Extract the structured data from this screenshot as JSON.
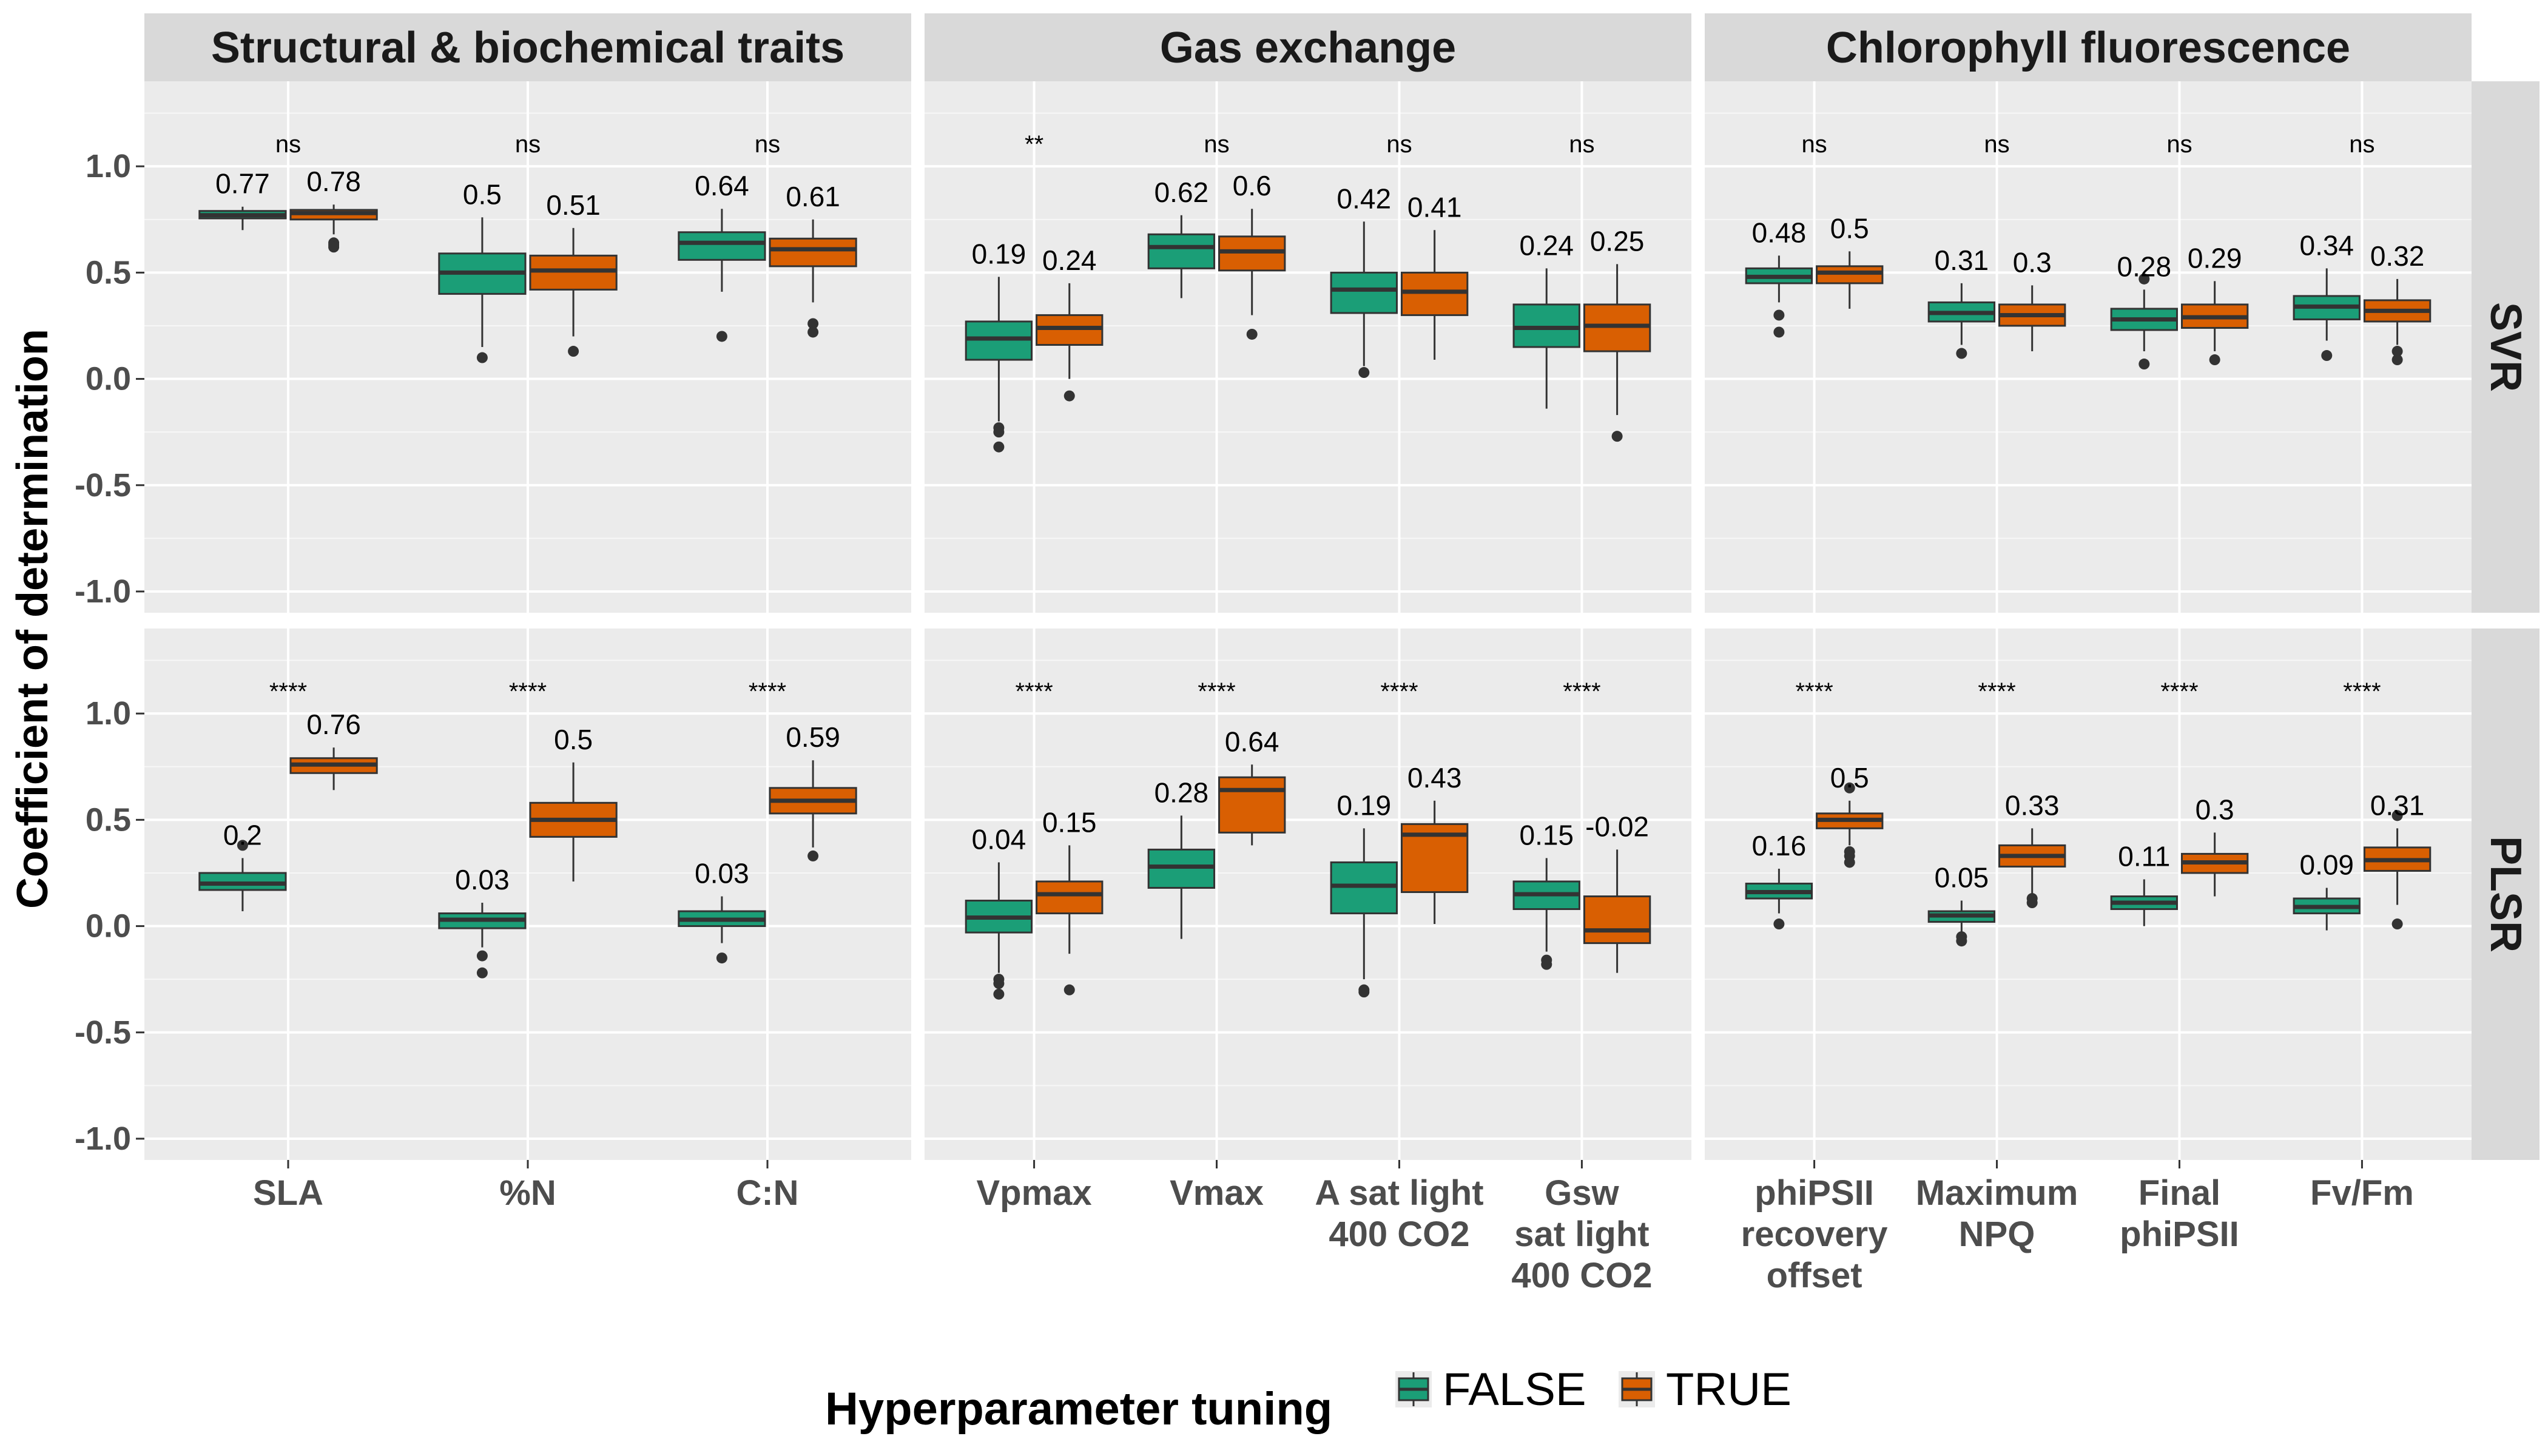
{
  "chart_data": {
    "type": "box",
    "ylabel": "Coefficient of determination",
    "ylim": [
      -1.1,
      1.4
    ],
    "yticks": [
      "-1.0",
      "-0.5",
      "0.0",
      "0.5",
      "1.0"
    ],
    "ytick_values": [
      -1.0,
      -0.5,
      0.0,
      0.5,
      1.0
    ],
    "grid": true,
    "column_panels": [
      "Structural & biochemical traits",
      "Gas exchange",
      "Chlorophyll fluorescence"
    ],
    "row_panels": [
      "SVR",
      "PLSR"
    ],
    "legend": {
      "title": "Hyperparameter tuning",
      "position": "bottom",
      "entries": [
        {
          "label": "FALSE",
          "color": "#1b9e77"
        },
        {
          "label": "TRUE",
          "color": "#d95f02"
        }
      ]
    },
    "panels": [
      {
        "row": "SVR",
        "column": "Structural & biochemical traits",
        "categories": [
          {
            "label": [
              "SLA"
            ],
            "sig": "ns",
            "false": {
              "median": 0.77,
              "q1": 0.755,
              "q3": 0.79,
              "whisker_low": 0.7,
              "whisker_high": 0.81,
              "outliers": []
            },
            "true": {
              "median": 0.78,
              "q1": 0.75,
              "q3": 0.795,
              "whisker_low": 0.68,
              "whisker_high": 0.82,
              "outliers": [
                0.64,
                0.63,
                0.62
              ]
            }
          },
          {
            "label": [
              "%N"
            ],
            "sig": "ns",
            "false": {
              "median": 0.5,
              "q1": 0.4,
              "q3": 0.59,
              "whisker_low": 0.15,
              "whisker_high": 0.76,
              "outliers": [
                0.1
              ]
            },
            "true": {
              "median": 0.51,
              "q1": 0.42,
              "q3": 0.58,
              "whisker_low": 0.2,
              "whisker_high": 0.71,
              "outliers": [
                0.13
              ]
            }
          },
          {
            "label": [
              "C:N"
            ],
            "sig": "ns",
            "false": {
              "median": 0.64,
              "q1": 0.56,
              "q3": 0.69,
              "whisker_low": 0.41,
              "whisker_high": 0.8,
              "outliers": [
                0.2
              ]
            },
            "true": {
              "median": 0.61,
              "q1": 0.53,
              "q3": 0.66,
              "whisker_low": 0.36,
              "whisker_high": 0.75,
              "outliers": [
                0.26,
                0.22
              ]
            }
          }
        ]
      },
      {
        "row": "SVR",
        "column": "Gas exchange",
        "categories": [
          {
            "label": [
              "Vpmax"
            ],
            "sig": "**",
            "false": {
              "median": 0.19,
              "q1": 0.09,
              "q3": 0.27,
              "whisker_low": -0.2,
              "whisker_high": 0.48,
              "outliers": [
                -0.23,
                -0.25,
                -0.32
              ]
            },
            "true": {
              "median": 0.24,
              "q1": 0.16,
              "q3": 0.3,
              "whisker_low": 0.0,
              "whisker_high": 0.45,
              "outliers": [
                -0.08
              ]
            }
          },
          {
            "label": [
              "Vmax"
            ],
            "sig": "ns",
            "false": {
              "median": 0.62,
              "q1": 0.52,
              "q3": 0.68,
              "whisker_low": 0.38,
              "whisker_high": 0.77,
              "outliers": []
            },
            "true": {
              "median": 0.6,
              "q1": 0.51,
              "q3": 0.67,
              "whisker_low": 0.3,
              "whisker_high": 0.8,
              "outliers": [
                0.21
              ]
            }
          },
          {
            "label": [
              "A sat light",
              "400 CO2"
            ],
            "sig": "ns",
            "false": {
              "median": 0.42,
              "q1": 0.31,
              "q3": 0.5,
              "whisker_low": 0.06,
              "whisker_high": 0.74,
              "outliers": [
                0.03
              ]
            },
            "true": {
              "median": 0.41,
              "q1": 0.3,
              "q3": 0.5,
              "whisker_low": 0.09,
              "whisker_high": 0.7,
              "outliers": []
            }
          },
          {
            "label": [
              "Gsw",
              "sat light",
              "400 CO2"
            ],
            "sig": "ns",
            "false": {
              "median": 0.24,
              "q1": 0.15,
              "q3": 0.35,
              "whisker_low": -0.14,
              "whisker_high": 0.52,
              "outliers": []
            },
            "true": {
              "median": 0.25,
              "q1": 0.13,
              "q3": 0.35,
              "whisker_low": -0.17,
              "whisker_high": 0.54,
              "outliers": [
                -0.27
              ]
            }
          }
        ]
      },
      {
        "row": "SVR",
        "column": "Chlorophyll fluorescence",
        "categories": [
          {
            "label": [
              "phiPSII",
              "recovery",
              "offset"
            ],
            "sig": "ns",
            "false": {
              "median": 0.48,
              "q1": 0.45,
              "q3": 0.52,
              "whisker_low": 0.36,
              "whisker_high": 0.58,
              "outliers": [
                0.3,
                0.22
              ]
            },
            "true": {
              "median": 0.5,
              "q1": 0.45,
              "q3": 0.53,
              "whisker_low": 0.33,
              "whisker_high": 0.6,
              "outliers": []
            }
          },
          {
            "label": [
              "Maximum",
              "NPQ"
            ],
            "sig": "ns",
            "false": {
              "median": 0.31,
              "q1": 0.27,
              "q3": 0.36,
              "whisker_low": 0.16,
              "whisker_high": 0.45,
              "outliers": [
                0.12
              ]
            },
            "true": {
              "median": 0.3,
              "q1": 0.25,
              "q3": 0.35,
              "whisker_low": 0.13,
              "whisker_high": 0.44,
              "outliers": []
            }
          },
          {
            "label": [
              "Final",
              "phiPSII"
            ],
            "sig": "ns",
            "false": {
              "median": 0.28,
              "q1": 0.23,
              "q3": 0.33,
              "whisker_low": 0.13,
              "whisker_high": 0.42,
              "outliers": [
                0.47,
                0.07
              ]
            },
            "true": {
              "median": 0.29,
              "q1": 0.24,
              "q3": 0.35,
              "whisker_low": 0.13,
              "whisker_high": 0.46,
              "outliers": [
                0.09
              ]
            }
          },
          {
            "label": [
              "Fv/Fm"
            ],
            "sig": "ns",
            "false": {
              "median": 0.34,
              "q1": 0.28,
              "q3": 0.39,
              "whisker_low": 0.18,
              "whisker_high": 0.52,
              "outliers": [
                0.11
              ]
            },
            "true": {
              "median": 0.32,
              "q1": 0.27,
              "q3": 0.37,
              "whisker_low": 0.16,
              "whisker_high": 0.47,
              "outliers": [
                0.13,
                0.09
              ]
            }
          }
        ]
      },
      {
        "row": "PLSR",
        "column": "Structural & biochemical traits",
        "categories": [
          {
            "label": [
              "SLA"
            ],
            "sig": "****",
            "false": {
              "median": 0.2,
              "q1": 0.17,
              "q3": 0.25,
              "whisker_low": 0.07,
              "whisker_high": 0.32,
              "outliers": [
                0.38
              ]
            },
            "true": {
              "median": 0.76,
              "q1": 0.72,
              "q3": 0.79,
              "whisker_low": 0.64,
              "whisker_high": 0.84,
              "outliers": []
            }
          },
          {
            "label": [
              "%N"
            ],
            "sig": "****",
            "false": {
              "median": 0.03,
              "q1": -0.01,
              "q3": 0.06,
              "whisker_low": -0.1,
              "whisker_high": 0.11,
              "outliers": [
                -0.14,
                -0.22
              ]
            },
            "true": {
              "median": 0.5,
              "q1": 0.42,
              "q3": 0.58,
              "whisker_low": 0.21,
              "whisker_high": 0.77,
              "outliers": []
            }
          },
          {
            "label": [
              "C:N"
            ],
            "sig": "****",
            "false": {
              "median": 0.03,
              "q1": 0.0,
              "q3": 0.07,
              "whisker_low": -0.08,
              "whisker_high": 0.14,
              "outliers": [
                -0.15
              ]
            },
            "true": {
              "median": 0.59,
              "q1": 0.53,
              "q3": 0.65,
              "whisker_low": 0.37,
              "whisker_high": 0.78,
              "outliers": [
                0.33
              ]
            }
          }
        ]
      },
      {
        "row": "PLSR",
        "column": "Gas exchange",
        "categories": [
          {
            "label": [
              "Vpmax"
            ],
            "sig": "****",
            "false": {
              "median": 0.04,
              "q1": -0.03,
              "q3": 0.12,
              "whisker_low": -0.22,
              "whisker_high": 0.3,
              "outliers": [
                -0.25,
                -0.27,
                -0.32
              ]
            },
            "true": {
              "median": 0.15,
              "q1": 0.06,
              "q3": 0.21,
              "whisker_low": -0.13,
              "whisker_high": 0.38,
              "outliers": [
                -0.3
              ]
            }
          },
          {
            "label": [
              "Vmax"
            ],
            "sig": "****",
            "false": {
              "median": 0.28,
              "q1": 0.18,
              "q3": 0.36,
              "whisker_low": -0.06,
              "whisker_high": 0.52,
              "outliers": []
            },
            "true": {
              "median": 0.64,
              "q1": 0.44,
              "q3": 0.7,
              "whisker_low": 0.38,
              "whisker_high": 0.76,
              "outliers": []
            }
          },
          {
            "label": [
              "A sat light",
              "400 CO2"
            ],
            "sig": "****",
            "false": {
              "median": 0.19,
              "q1": 0.06,
              "q3": 0.3,
              "whisker_low": -0.25,
              "whisker_high": 0.46,
              "outliers": [
                -0.3,
                -0.31
              ]
            },
            "true": {
              "median": 0.43,
              "q1": 0.16,
              "q3": 0.48,
              "whisker_low": 0.01,
              "whisker_high": 0.59,
              "outliers": []
            }
          },
          {
            "label": [
              "Gsw",
              "sat light",
              "400 CO2"
            ],
            "sig": "****",
            "false": {
              "median": 0.15,
              "q1": 0.08,
              "q3": 0.21,
              "whisker_low": -0.12,
              "whisker_high": 0.32,
              "outliers": [
                -0.16,
                -0.18
              ]
            },
            "true": {
              "median": -0.02,
              "q1": -0.08,
              "q3": 0.14,
              "whisker_low": -0.22,
              "whisker_high": 0.36,
              "outliers": []
            }
          }
        ]
      },
      {
        "row": "PLSR",
        "column": "Chlorophyll fluorescence",
        "categories": [
          {
            "label": [
              "phiPSII",
              "recovery",
              "offset"
            ],
            "sig": "****",
            "false": {
              "median": 0.16,
              "q1": 0.13,
              "q3": 0.2,
              "whisker_low": 0.06,
              "whisker_high": 0.27,
              "outliers": [
                0.01
              ]
            },
            "true": {
              "median": 0.5,
              "q1": 0.46,
              "q3": 0.53,
              "whisker_low": 0.38,
              "whisker_high": 0.59,
              "outliers": [
                0.65,
                0.35,
                0.33,
                0.3
              ]
            }
          },
          {
            "label": [
              "Maximum",
              "NPQ"
            ],
            "sig": "****",
            "false": {
              "median": 0.05,
              "q1": 0.02,
              "q3": 0.07,
              "whisker_low": -0.03,
              "whisker_high": 0.12,
              "outliers": [
                -0.05,
                -0.07
              ]
            },
            "true": {
              "median": 0.33,
              "q1": 0.28,
              "q3": 0.38,
              "whisker_low": 0.15,
              "whisker_high": 0.46,
              "outliers": [
                0.13,
                0.11
              ]
            }
          },
          {
            "label": [
              "Final",
              "phiPSII"
            ],
            "sig": "****",
            "false": {
              "median": 0.11,
              "q1": 0.08,
              "q3": 0.14,
              "whisker_low": 0.0,
              "whisker_high": 0.22,
              "outliers": []
            },
            "true": {
              "median": 0.3,
              "q1": 0.25,
              "q3": 0.34,
              "whisker_low": 0.14,
              "whisker_high": 0.44,
              "outliers": []
            }
          },
          {
            "label": [
              "Fv/Fm"
            ],
            "sig": "****",
            "false": {
              "median": 0.09,
              "q1": 0.06,
              "q3": 0.13,
              "whisker_low": -0.02,
              "whisker_high": 0.18,
              "outliers": []
            },
            "true": {
              "median": 0.31,
              "q1": 0.26,
              "q3": 0.37,
              "whisker_low": 0.1,
              "whisker_high": 0.46,
              "outliers": [
                0.52,
                0.01
              ]
            }
          }
        ]
      }
    ]
  }
}
